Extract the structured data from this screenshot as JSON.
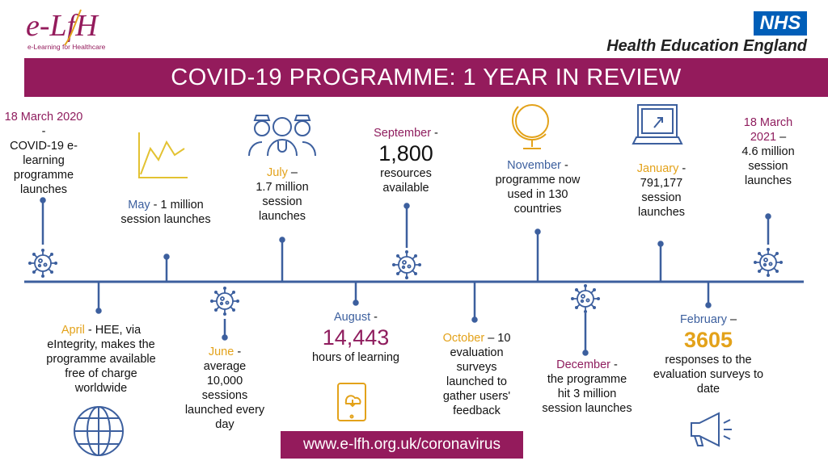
{
  "header": {
    "logo_left_text": "e-LfH",
    "logo_left_sub": "e-Learning for Healthcare",
    "nhs_badge": "NHS",
    "org_name": "Health Education England",
    "title": "COVID-19 PROGRAMME: 1 YEAR IN REVIEW"
  },
  "colors": {
    "banner": "#941b5c",
    "timeline": "#3c5f9e",
    "magenta": "#8f1d5e",
    "blue": "#3c5f9e",
    "gold": "#e3a21a",
    "nhs_blue": "#005eb8"
  },
  "events": {
    "mar2020": {
      "date": "18 March 2020",
      "sep": " -",
      "text": "COVID-19 e-learning programme launches",
      "icon": "virus-icon"
    },
    "apr": {
      "date": "April",
      "text": " - HEE, via eIntegrity, makes the programme available free of charge worldwide",
      "icon": "globe-icon"
    },
    "may": {
      "date": "May",
      "text": " - 1 million session launches",
      "icon": "line-chart-icon"
    },
    "jun": {
      "date": "June",
      "sep": " -",
      "text": "average 10,000 sessions launched every day",
      "icon": "virus-icon"
    },
    "jul": {
      "date": "July",
      "sep": " –",
      "text": "1.7 million session launches",
      "icon": "medical-staff-icon"
    },
    "aug": {
      "date": "August",
      "sep": " -",
      "figure": "14,443",
      "text": "hours of learning",
      "icon": "tablet-cloud-icon"
    },
    "sep": {
      "date": "September",
      "sep": " -",
      "figure": "1,800",
      "text": "resources available",
      "icon": "virus-icon"
    },
    "oct": {
      "date": "October",
      "text": " – 10 evaluation surveys launched to gather users' feedback"
    },
    "nov": {
      "date": "November",
      "sep": " -",
      "text": "programme now used in 130 countries",
      "icon": "globe-stand-icon"
    },
    "dec": {
      "date": "December",
      "sep": " -",
      "text": "the programme hit 3 million session launches",
      "icon": "virus-icon"
    },
    "jan": {
      "date": "January",
      "sep": " -",
      "text": "791,177 session launches",
      "icon": "laptop-icon"
    },
    "feb": {
      "date": "February",
      "sep": " –",
      "figure": "3605",
      "text": "responses to the evaluation surveys to date",
      "icon": "megaphone-icon"
    },
    "mar2021": {
      "date": "18 March 2021",
      "sep": " –",
      "text": "4.6 million session launches",
      "icon": "virus-icon"
    }
  },
  "footer": {
    "url": "www.e-lfh.org.uk/coronavirus"
  }
}
